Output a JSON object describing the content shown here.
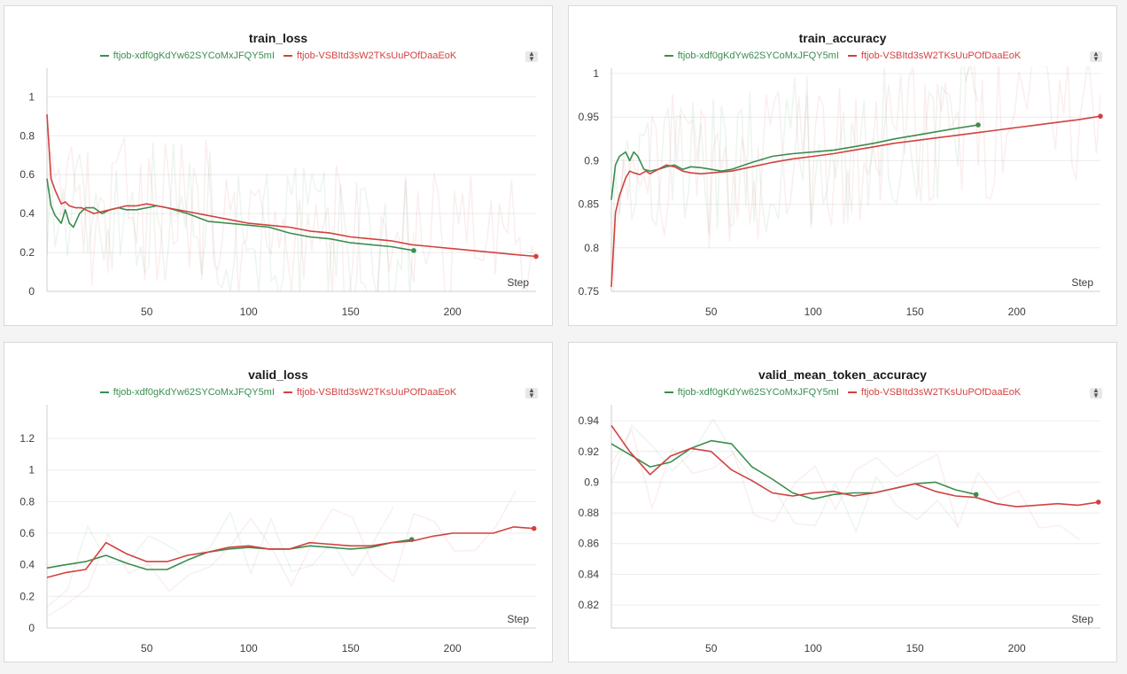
{
  "colors": {
    "series_a": "#3b8d4f",
    "series_b": "#d1423f",
    "grid": "#ececec",
    "axis": "#cfcfcf"
  },
  "legend_toggle_icon": "sort-arrows-icon",
  "chart_data": [
    {
      "type": "line",
      "title": "train_loss",
      "xlabel": "Step",
      "xlim": [
        1,
        241
      ],
      "ylim": [
        0,
        1.12
      ],
      "xticks": [
        50,
        100,
        150,
        200
      ],
      "yticks": [
        0,
        0.2,
        0.4,
        0.6,
        0.8,
        1
      ],
      "grid": true,
      "legend": "top-center",
      "series": [
        {
          "name": "ftjob-xdf0gKdYw62SYCoMxJFQY5mI",
          "x": [
            1,
            3,
            5,
            8,
            10,
            12,
            14,
            17,
            20,
            24,
            28,
            32,
            36,
            40,
            45,
            50,
            55,
            60,
            70,
            80,
            90,
            100,
            110,
            120,
            130,
            140,
            150,
            160,
            170,
            181
          ],
          "y": [
            0.58,
            0.44,
            0.39,
            0.35,
            0.42,
            0.35,
            0.33,
            0.4,
            0.43,
            0.43,
            0.4,
            0.42,
            0.43,
            0.42,
            0.42,
            0.43,
            0.44,
            0.43,
            0.4,
            0.36,
            0.35,
            0.34,
            0.33,
            0.3,
            0.28,
            0.27,
            0.25,
            0.24,
            0.23,
            0.21
          ]
        },
        {
          "name": "ftjob-VSBItd3sW2TKsUuPOfDaaEoK",
          "x": [
            1,
            3,
            5,
            8,
            10,
            12,
            15,
            18,
            20,
            24,
            28,
            32,
            36,
            40,
            45,
            50,
            55,
            60,
            70,
            80,
            90,
            100,
            110,
            120,
            130,
            140,
            150,
            160,
            170,
            180,
            190,
            200,
            210,
            220,
            230,
            241
          ],
          "y": [
            0.91,
            0.58,
            0.52,
            0.45,
            0.46,
            0.44,
            0.43,
            0.43,
            0.42,
            0.4,
            0.41,
            0.42,
            0.43,
            0.44,
            0.44,
            0.45,
            0.44,
            0.43,
            0.41,
            0.39,
            0.37,
            0.35,
            0.34,
            0.33,
            0.31,
            0.3,
            0.28,
            0.27,
            0.26,
            0.24,
            0.23,
            0.22,
            0.21,
            0.2,
            0.19,
            0.18
          ]
        }
      ]
    },
    {
      "type": "line",
      "title": "train_accuracy",
      "xlabel": "Step",
      "xlim": [
        1,
        241
      ],
      "ylim": [
        0.75,
        1.0
      ],
      "xticks": [
        50,
        100,
        150,
        200
      ],
      "yticks": [
        0.75,
        0.8,
        0.85,
        0.9,
        0.95,
        1
      ],
      "grid": true,
      "legend": "top-center",
      "series": [
        {
          "name": "ftjob-xdf0gKdYw62SYCoMxJFQY5mI",
          "x": [
            1,
            3,
            5,
            8,
            10,
            12,
            14,
            17,
            20,
            24,
            28,
            32,
            36,
            40,
            45,
            50,
            55,
            60,
            70,
            80,
            90,
            100,
            110,
            120,
            130,
            140,
            150,
            160,
            170,
            181
          ],
          "y": [
            0.855,
            0.895,
            0.905,
            0.91,
            0.9,
            0.91,
            0.905,
            0.89,
            0.888,
            0.89,
            0.893,
            0.895,
            0.89,
            0.893,
            0.892,
            0.89,
            0.888,
            0.89,
            0.898,
            0.905,
            0.908,
            0.91,
            0.912,
            0.916,
            0.92,
            0.925,
            0.929,
            0.933,
            0.937,
            0.941
          ]
        },
        {
          "name": "ftjob-VSBItd3sW2TKsUuPOfDaaEoK",
          "x": [
            1,
            3,
            5,
            8,
            10,
            12,
            15,
            18,
            20,
            24,
            28,
            32,
            36,
            40,
            45,
            50,
            55,
            60,
            70,
            80,
            90,
            100,
            110,
            120,
            130,
            140,
            150,
            160,
            170,
            180,
            190,
            200,
            210,
            220,
            230,
            241
          ],
          "y": [
            0.755,
            0.84,
            0.86,
            0.88,
            0.888,
            0.886,
            0.884,
            0.888,
            0.885,
            0.89,
            0.895,
            0.893,
            0.888,
            0.886,
            0.885,
            0.886,
            0.887,
            0.888,
            0.893,
            0.898,
            0.902,
            0.905,
            0.908,
            0.912,
            0.916,
            0.92,
            0.923,
            0.926,
            0.929,
            0.932,
            0.935,
            0.938,
            0.941,
            0.944,
            0.947,
            0.951
          ]
        }
      ]
    },
    {
      "type": "line",
      "title": "valid_loss",
      "xlabel": "Step",
      "xlim": [
        1,
        241
      ],
      "ylim": [
        0,
        1.38
      ],
      "xticks": [
        50,
        100,
        150,
        200
      ],
      "yticks": [
        0,
        0.2,
        0.4,
        0.6,
        0.8,
        1,
        1.2
      ],
      "grid": true,
      "legend": "top-center",
      "series": [
        {
          "name": "ftjob-xdf0gKdYw62SYCoMxJFQY5mI",
          "x": [
            1,
            10,
            20,
            30,
            40,
            50,
            60,
            70,
            80,
            90,
            100,
            110,
            120,
            130,
            140,
            150,
            160,
            170,
            180
          ],
          "y": [
            0.38,
            0.4,
            0.42,
            0.46,
            0.41,
            0.37,
            0.37,
            0.43,
            0.48,
            0.5,
            0.51,
            0.5,
            0.5,
            0.52,
            0.51,
            0.5,
            0.51,
            0.54,
            0.56
          ]
        },
        {
          "name": "ftjob-VSBItd3sW2TKsUuPOfDaaEoK",
          "x": [
            1,
            10,
            20,
            30,
            40,
            50,
            60,
            70,
            80,
            90,
            100,
            110,
            120,
            130,
            140,
            150,
            160,
            170,
            180,
            190,
            200,
            210,
            220,
            230,
            240
          ],
          "y": [
            0.32,
            0.35,
            0.37,
            0.54,
            0.47,
            0.42,
            0.42,
            0.46,
            0.48,
            0.51,
            0.52,
            0.5,
            0.5,
            0.54,
            0.53,
            0.52,
            0.52,
            0.54,
            0.55,
            0.58,
            0.6,
            0.6,
            0.6,
            0.64,
            0.63
          ]
        }
      ]
    },
    {
      "type": "line",
      "title": "valid_mean_token_accuracy",
      "xlabel": "Step",
      "xlim": [
        1,
        241
      ],
      "ylim": [
        0.805,
        0.947
      ],
      "xticks": [
        50,
        100,
        150,
        200
      ],
      "yticks": [
        0.82,
        0.84,
        0.86,
        0.88,
        0.9,
        0.92,
        0.94
      ],
      "grid": true,
      "legend": "top-center",
      "series": [
        {
          "name": "ftjob-xdf0gKdYw62SYCoMxJFQY5mI",
          "x": [
            1,
            10,
            20,
            30,
            40,
            50,
            60,
            70,
            80,
            90,
            100,
            110,
            120,
            130,
            140,
            150,
            160,
            170,
            180
          ],
          "y": [
            0.925,
            0.918,
            0.91,
            0.913,
            0.922,
            0.927,
            0.925,
            0.91,
            0.902,
            0.893,
            0.889,
            0.892,
            0.893,
            0.893,
            0.896,
            0.899,
            0.9,
            0.895,
            0.892
          ]
        },
        {
          "name": "ftjob-VSBItd3sW2TKsUuPOfDaaEoK",
          "x": [
            1,
            10,
            20,
            30,
            40,
            50,
            60,
            70,
            80,
            90,
            100,
            110,
            120,
            130,
            140,
            150,
            160,
            170,
            180,
            190,
            200,
            210,
            220,
            230,
            240
          ],
          "y": [
            0.937,
            0.92,
            0.905,
            0.917,
            0.922,
            0.92,
            0.908,
            0.901,
            0.893,
            0.891,
            0.893,
            0.894,
            0.891,
            0.893,
            0.896,
            0.899,
            0.894,
            0.891,
            0.89,
            0.886,
            0.884,
            0.885,
            0.886,
            0.885,
            0.887
          ]
        }
      ]
    }
  ]
}
